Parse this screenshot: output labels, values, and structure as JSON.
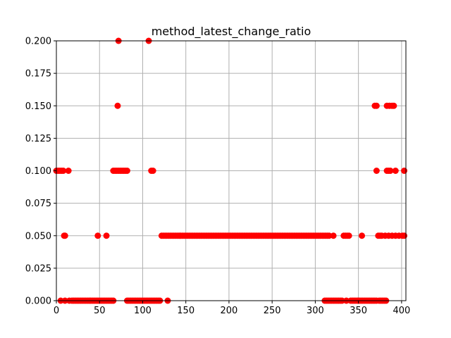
{
  "chart_data": {
    "type": "scatter",
    "title": "method_latest_change_ratio",
    "xlabel": "",
    "ylabel": "",
    "xlim": [
      0,
      405
    ],
    "ylim": [
      0,
      0.2
    ],
    "x_ticks": [
      0,
      50,
      100,
      150,
      200,
      250,
      300,
      350,
      400
    ],
    "y_ticks": [
      0.0,
      0.025,
      0.05,
      0.075,
      0.1,
      0.125,
      0.15,
      0.175,
      0.2
    ],
    "x_tick_labels": [
      "0",
      "50",
      "100",
      "150",
      "200",
      "250",
      "300",
      "350",
      "400"
    ],
    "y_tick_labels": [
      "0.000",
      "0.025",
      "0.050",
      "0.075",
      "0.100",
      "0.125",
      "0.150",
      "0.175",
      "0.200"
    ],
    "grid": true,
    "marker_color": "#ff0000",
    "points_by_level": [
      {
        "y": 0.2,
        "x": [
          72,
          107
        ]
      },
      {
        "y": 0.15,
        "x": [
          71,
          369,
          371,
          383,
          386,
          389,
          391
        ]
      },
      {
        "y": 0.1,
        "x": [
          0,
          2,
          4,
          6,
          8,
          14,
          66,
          68,
          70,
          72,
          74,
          76,
          78,
          80,
          82,
          110,
          112,
          371,
          383,
          385,
          387,
          393,
          403
        ]
      },
      {
        "y": 0.05,
        "x": [
          9,
          10,
          48,
          58,
          122,
          124,
          126,
          128,
          130,
          132,
          134,
          136,
          138,
          140,
          142,
          144,
          146,
          148,
          150,
          152,
          154,
          156,
          158,
          160,
          162,
          164,
          166,
          168,
          170,
          172,
          174,
          176,
          178,
          180,
          182,
          184,
          186,
          188,
          190,
          192,
          194,
          196,
          198,
          200,
          202,
          204,
          206,
          208,
          210,
          212,
          214,
          216,
          218,
          220,
          222,
          224,
          226,
          228,
          230,
          232,
          234,
          236,
          238,
          240,
          242,
          244,
          246,
          248,
          250,
          252,
          254,
          256,
          258,
          260,
          262,
          264,
          266,
          268,
          270,
          272,
          274,
          276,
          278,
          280,
          282,
          284,
          286,
          288,
          290,
          292,
          294,
          296,
          298,
          300,
          302,
          304,
          306,
          308,
          310,
          312,
          314,
          316,
          321,
          333,
          335,
          337,
          339,
          354,
          373,
          375,
          377,
          381,
          385,
          389,
          393,
          397,
          401,
          403
        ]
      },
      {
        "y": 0.0,
        "x": [
          5,
          10,
          15,
          18,
          20,
          22,
          24,
          26,
          28,
          30,
          32,
          34,
          36,
          38,
          40,
          42,
          44,
          46,
          48,
          50,
          52,
          54,
          56,
          58,
          60,
          62,
          64,
          66,
          82,
          84,
          86,
          88,
          90,
          92,
          94,
          96,
          98,
          100,
          102,
          104,
          106,
          108,
          110,
          112,
          114,
          116,
          118,
          120,
          129,
          311,
          313,
          315,
          317,
          319,
          321,
          323,
          325,
          327,
          329,
          331,
          336,
          341,
          343,
          345,
          347,
          349,
          351,
          353,
          355,
          357,
          359,
          361,
          363,
          365,
          367,
          369,
          371,
          374,
          376,
          378,
          380,
          382
        ]
      }
    ]
  }
}
